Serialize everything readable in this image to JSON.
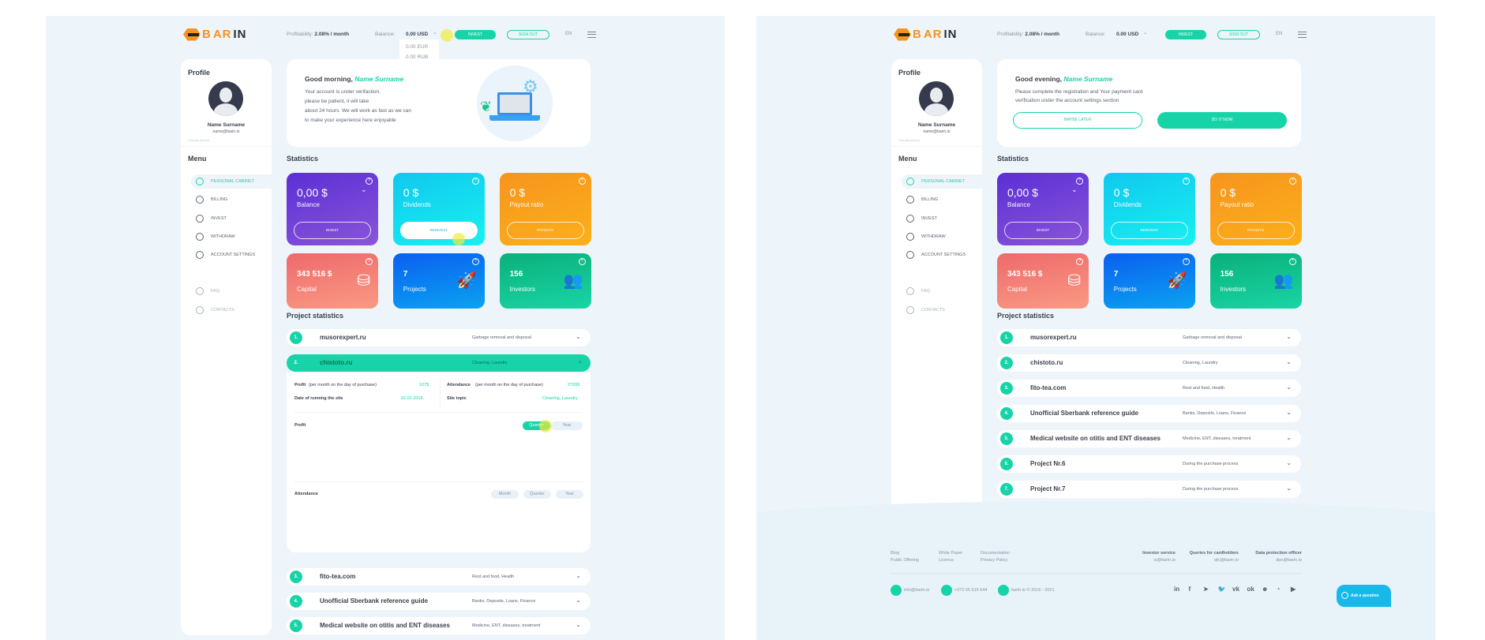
{
  "brand": {
    "logo_b": "B",
    "logo_text_orange": "AR",
    "logo_text_dark": "IN"
  },
  "colors": {
    "accent": "#16d4a8",
    "balance": "#6a35d9",
    "dividends": "#0fd0ea",
    "payout": "#f7931e",
    "capital": "#f0736f",
    "projects": "#0a6fe8",
    "investors": "#10c58c"
  },
  "screens": [
    {
      "header": {
        "profitability_label": "Profitability:",
        "profitability_value": "2.08% / month",
        "balance_label": "Balance:",
        "balance_value": "0.00 USD",
        "balance_options": [
          "0.00 EUR",
          "0.00 RUB"
        ],
        "invest": "INVEST",
        "sign_out": "SIGN OUT",
        "lang": "EN"
      },
      "profile": {
        "title": "Profile",
        "name": "Name Surname",
        "email": "name@barin.io",
        "change": "Change picture"
      },
      "menu": {
        "title": "Menu",
        "items": [
          {
            "label": "PERSONAL CABINET",
            "icon": "gauge-icon",
            "active": true
          },
          {
            "label": "BILLING",
            "icon": "billing-icon"
          },
          {
            "label": "INVEST",
            "icon": "invest-icon"
          },
          {
            "label": "WITHDRAW",
            "icon": "withdraw-icon"
          },
          {
            "label": "ACCOUNT SETTINGS",
            "icon": "gear-icon"
          }
        ],
        "extra": [
          {
            "label": "FAQ",
            "icon": "question-icon"
          },
          {
            "label": "CONTACTS",
            "icon": "chat-icon"
          }
        ]
      },
      "greeting": {
        "hello": "Good morning,",
        "name": "Name Surname",
        "text": [
          "Your account is under verifaction,",
          "please be patient, it will take",
          "about 24 hours. We will work as fast as we can",
          "to make your experience here enjoyable"
        ]
      },
      "statistics": {
        "title": "Statistics",
        "cards": [
          {
            "value": "0,00 $",
            "label": "Balance",
            "button": "INVEST"
          },
          {
            "value": "0 $",
            "label": "Dividends",
            "button": "REINVEST"
          },
          {
            "value": "0 $",
            "label": "Payout ratio",
            "button": "PAYOUTS"
          },
          {
            "value": "343 516 $",
            "label": "Capital",
            "icon": "coins-icon"
          },
          {
            "value": "7",
            "label": "Projects",
            "icon": "rocket-icon"
          },
          {
            "value": "156",
            "label": "Investors",
            "icon": "people-icon"
          }
        ]
      },
      "projects": {
        "title": "Project statistics",
        "rows": [
          {
            "num": "1.",
            "name": "musorexpert.ru",
            "topic": "Garbage removal and disposal"
          },
          {
            "num": "2.",
            "name": "chistoto.ru",
            "topic": "Cleaning, Laundry",
            "expanded": true
          },
          {
            "num": "3.",
            "name": "fito-tea.com",
            "topic": "Rest and food, Health"
          },
          {
            "num": "4.",
            "name": "Unofficial Sberbank reference guide",
            "topic": "Banks, Deposits, Loans, Finance"
          },
          {
            "num": "5.",
            "name": "Medical website on otitis and ENT diseases",
            "topic": "Medicine, ENT, diseases, treatment"
          }
        ],
        "details": {
          "profit_label": "Profit",
          "profit_note": "(per month on the day of purchase)",
          "profit_value": "107$",
          "attendance_label": "Attendance",
          "attendance_note": "(per month on the day of purchase)",
          "attendance_value": "27099",
          "date_label": "Date of running the site",
          "date_value": "02.01.2018.",
          "topic_label": "Site topic",
          "topic_value": "Cleaning, Laundry",
          "chart_profit": "Profit",
          "profit_toggles": [
            "Quarter",
            "Year"
          ],
          "profit_active": "Quarter",
          "chart_attendance": "Attendance",
          "attendance_toggles": [
            "Month",
            "Quarter",
            "Year"
          ]
        }
      }
    },
    {
      "header": {
        "profitability_label": "Profitability:",
        "profitability_value": "2.08% / month",
        "balance_label": "Balance:",
        "balance_value": "0.00 USD",
        "invest": "INVEST",
        "sign_out": "SIGN OUT",
        "lang": "EN"
      },
      "profile": {
        "title": "Profile",
        "name": "Name Surname",
        "email": "name@barin.io",
        "change": "Change picture"
      },
      "menu": {
        "title": "Menu",
        "items": [
          {
            "label": "PERSONAL CABINET",
            "icon": "gauge-icon",
            "active": true
          },
          {
            "label": "BILLING",
            "icon": "billing-icon"
          },
          {
            "label": "INVEST",
            "icon": "invest-icon"
          },
          {
            "label": "WITHDRAW",
            "icon": "withdraw-icon"
          },
          {
            "label": "ACCOUNT SETTINGS",
            "icon": "gear-icon"
          }
        ],
        "extra": [
          {
            "label": "FAQ",
            "icon": "question-icon"
          },
          {
            "label": "CONTACTS",
            "icon": "chat-icon"
          }
        ]
      },
      "greeting": {
        "hello": "Good evening,",
        "name": "Name Surname",
        "text": [
          "Please complete the registration and Your payment card",
          "verification under the account settings section"
        ],
        "later": "MAYBE LATER",
        "now": "DO IT NOW"
      },
      "statistics": {
        "title": "Statistics",
        "cards": [
          {
            "value": "0,00 $",
            "label": "Balance",
            "button": "INVEST"
          },
          {
            "value": "0 $",
            "label": "Dividends",
            "button": "REINVEST"
          },
          {
            "value": "0 $",
            "label": "Payout ratio",
            "button": "PAYOUTS"
          },
          {
            "value": "343 516 $",
            "label": "Capital",
            "icon": "coins-icon"
          },
          {
            "value": "7",
            "label": "Projects",
            "icon": "rocket-icon"
          },
          {
            "value": "156",
            "label": "Investors",
            "icon": "people-icon"
          }
        ]
      },
      "projects": {
        "title": "Project statistics",
        "rows": [
          {
            "num": "1.",
            "name": "musorexpert.ru",
            "topic": "Garbage removal and disposal"
          },
          {
            "num": "2.",
            "name": "chistoto.ru",
            "topic": "Cleaning, Laundry"
          },
          {
            "num": "3.",
            "name": "fito-tea.com",
            "topic": "Rest and food, Health"
          },
          {
            "num": "4.",
            "name": "Unofficial Sberbank reference guide",
            "topic": "Banks, Deposits, Loans, Finance"
          },
          {
            "num": "5.",
            "name": "Medical website on otitis and ENT diseases",
            "topic": "Medicine, ENT, diseases, treatment"
          },
          {
            "num": "6.",
            "name": "Project Nr.6",
            "topic": "During the purchase process"
          },
          {
            "num": "7.",
            "name": "Project Nr.7",
            "topic": "During the purchase process"
          }
        ]
      },
      "footer": {
        "links": [
          [
            "Blog",
            "Public Offering"
          ],
          [
            "White Paper",
            "Licence"
          ],
          [
            "Documentation",
            "Privacy Policy"
          ]
        ],
        "contacts": [
          {
            "title": "Investor service",
            "email": "is@barin.io"
          },
          {
            "title": "Queries for cardholders",
            "email": "qfc@barin.io"
          },
          {
            "title": "Data protection officer",
            "email": "dpo@barin.io"
          }
        ],
        "info": [
          {
            "icon": "mail-icon",
            "text": "info@barin.io"
          },
          {
            "icon": "phone-icon",
            "text": "+372 55 515 644"
          },
          {
            "icon": "copyright-icon",
            "text": "barin.io © 2016 - 2021"
          }
        ],
        "social": [
          "in",
          "f",
          "➤",
          "🐦",
          "vk",
          "ok",
          "☻",
          "◔",
          "▶"
        ],
        "ask": "Ask a question"
      }
    }
  ]
}
